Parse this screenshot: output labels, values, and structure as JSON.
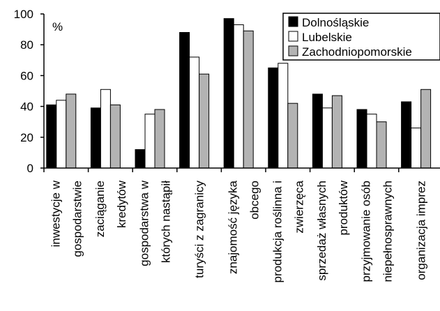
{
  "chart_data": {
    "type": "bar",
    "title": "",
    "unit_label": "%",
    "xlabel": "",
    "ylabel": "",
    "ylim": [
      0,
      100
    ],
    "yticks": [
      0,
      20,
      40,
      60,
      80,
      100
    ],
    "grid": false,
    "legend_position": "top-right",
    "categories": [
      [
        "inwestycje w",
        "gospodarstwie"
      ],
      [
        "zaciąganie",
        "kredytów"
      ],
      [
        "gospodarstwa w",
        "których nastąpił"
      ],
      [
        "turyści z zagranicy"
      ],
      [
        "znajomość języka",
        "obcego"
      ],
      [
        "produkcja roślinna i",
        "zwierzęca"
      ],
      [
        "sprzedaż własnych",
        "produktów"
      ],
      [
        "przyjmowanie osób",
        "niepełnosprawnych"
      ],
      [
        "organizacja imprez"
      ]
    ],
    "series": [
      {
        "name": "Dolnośląskie",
        "color": "#000000",
        "values": [
          41,
          39,
          12,
          88,
          97,
          65,
          48,
          38,
          43
        ]
      },
      {
        "name": "Lubelskie",
        "color": "#ffffff",
        "values": [
          44,
          51,
          35,
          72,
          93,
          68,
          39,
          35,
          26
        ]
      },
      {
        "name": "Zachodniopomorskie",
        "color": "#b3b3b3",
        "values": [
          48,
          41,
          38,
          61,
          89,
          42,
          47,
          30,
          51
        ]
      }
    ]
  }
}
